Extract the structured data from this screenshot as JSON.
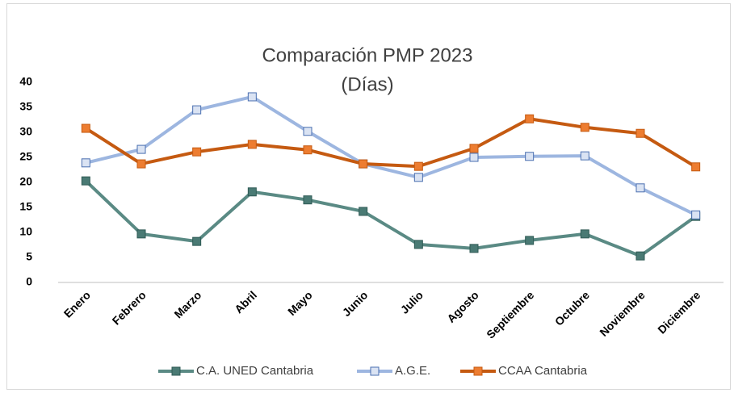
{
  "chart_data": {
    "type": "line",
    "title": "Comparación PMP 2023",
    "subtitle": "(Días)",
    "categories": [
      "Enero",
      "Febrero",
      "Marzo",
      "Abril",
      "Mayo",
      "Junio",
      "Julio",
      "Agosto",
      "Septiembre",
      "Octubre",
      "Noviembre",
      "Diciembre"
    ],
    "series": [
      {
        "name": "C.A. UNED Cantabria",
        "color": "#5a8a84",
        "marker_color": "#4a7a74",
        "marker_edge": "#2f5a55",
        "values": [
          20.3,
          9.7,
          8.2,
          18.1,
          16.5,
          14.2,
          7.6,
          6.8,
          8.4,
          9.7,
          5.3,
          13.2
        ]
      },
      {
        "name": "A.G.E.",
        "color": "#9db6e0",
        "marker_color": "#dae3f3",
        "marker_edge": "#4a6fb0",
        "values": [
          23.9,
          26.6,
          34.5,
          37.1,
          30.2,
          23.7,
          21.0,
          25.0,
          25.2,
          25.3,
          18.9,
          13.5
        ]
      },
      {
        "name": "CCAA Cantabria",
        "color": "#c55a11",
        "marker_color": "#ed7d31",
        "marker_edge": "#c55a11",
        "values": [
          30.8,
          23.7,
          26.1,
          27.6,
          26.5,
          23.7,
          23.2,
          26.8,
          32.7,
          31.0,
          29.8,
          23.1
        ]
      }
    ],
    "ylim": [
      0,
      40
    ],
    "yticks": [
      0,
      5,
      10,
      15,
      20,
      25,
      30,
      35,
      40
    ],
    "grid": false,
    "legend": "bottom"
  }
}
